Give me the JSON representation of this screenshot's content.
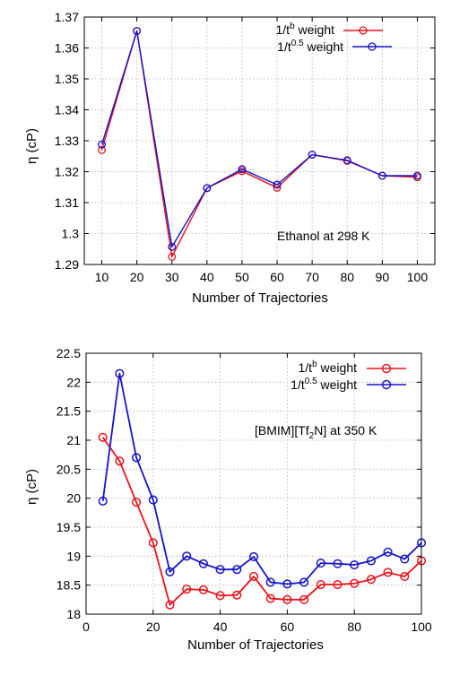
{
  "chart_data": [
    {
      "type": "line",
      "xlabel": "Number of Trajectories",
      "ylabel": "η (cP)",
      "xlim": [
        5,
        105
      ],
      "ylim": [
        1.29,
        1.37
      ],
      "x_ticks": [
        10,
        20,
        30,
        40,
        50,
        60,
        70,
        80,
        90,
        100
      ],
      "y_ticks": [
        1.29,
        1.3,
        1.31,
        1.32,
        1.33,
        1.34,
        1.35,
        1.36,
        1.37
      ],
      "y_tick_labels": [
        "1.29",
        "1.3",
        "1.31",
        "1.32",
        "1.33",
        "1.34",
        "1.35",
        "1.36",
        "1.37"
      ],
      "grid": true,
      "legend_position": "top-right",
      "annotation": "Ethanol at 298 K",
      "x": [
        10,
        20,
        30,
        40,
        50,
        60,
        70,
        80,
        90,
        100
      ],
      "series": [
        {
          "legend_base": "1/t",
          "legend_sup": "b",
          "legend_suffix": " weight",
          "color": "#e8141c",
          "values": [
            1.327,
            1.3655,
            1.2925,
            1.3147,
            1.3202,
            1.3148,
            1.3255,
            1.3235,
            1.3187,
            1.3182
          ]
        },
        {
          "legend_base": "1/t",
          "legend_sup": "0.5",
          "legend_suffix": " weight",
          "color": "#1414c8",
          "values": [
            1.3288,
            1.3655,
            1.2957,
            1.3147,
            1.3208,
            1.3158,
            1.3255,
            1.3237,
            1.3187,
            1.3187
          ]
        }
      ]
    },
    {
      "type": "line",
      "xlabel": "Number of Trajectories",
      "ylabel": "η (cP)",
      "xlim": [
        0,
        100
      ],
      "ylim": [
        18,
        22.5
      ],
      "x_ticks": [
        0,
        20,
        40,
        60,
        80,
        100
      ],
      "y_ticks": [
        18,
        18.5,
        19,
        19.5,
        20,
        20.5,
        21,
        21.5,
        22,
        22.5
      ],
      "y_tick_labels": [
        "18",
        "18.5",
        "19",
        "19.5",
        "20",
        "20.5",
        "21",
        "21.5",
        "22",
        "22.5"
      ],
      "grid": true,
      "legend_position": "top-right",
      "annotation_prefix": "[BMIM][Tf",
      "annotation_sub": "2",
      "annotation_suffix": "N] at 350 K",
      "x": [
        5,
        10,
        15,
        20,
        25,
        30,
        35,
        40,
        45,
        50,
        55,
        60,
        65,
        70,
        75,
        80,
        85,
        90,
        95,
        100
      ],
      "series": [
        {
          "legend_base": "1/t",
          "legend_sup": "b",
          "legend_suffix": " weight",
          "color": "#e8141c",
          "values": [
            21.05,
            20.64,
            19.93,
            19.23,
            18.16,
            18.43,
            18.42,
            18.32,
            18.33,
            18.65,
            18.27,
            18.25,
            18.25,
            18.51,
            18.51,
            18.53,
            18.6,
            18.72,
            18.65,
            18.92
          ]
        },
        {
          "legend_base": "1/t",
          "legend_sup": "0.5",
          "legend_suffix": " weight",
          "color": "#1414c8",
          "values": [
            19.95,
            22.15,
            20.7,
            19.97,
            18.73,
            19.0,
            18.87,
            18.77,
            18.77,
            18.99,
            18.55,
            18.52,
            18.55,
            18.88,
            18.87,
            18.85,
            18.92,
            19.07,
            18.95,
            19.23
          ]
        }
      ]
    }
  ]
}
